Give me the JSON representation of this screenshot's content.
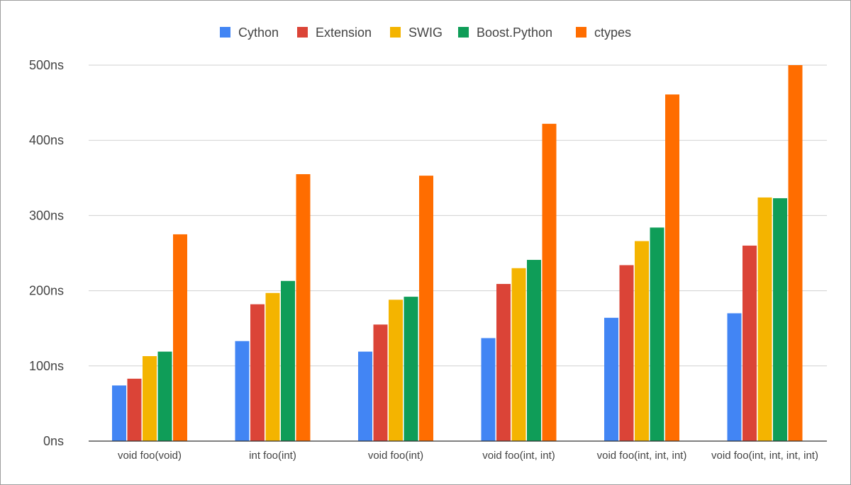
{
  "chart_data": {
    "type": "bar",
    "title": "",
    "xlabel": "",
    "ylabel": "",
    "categories": [
      "void foo(void)",
      "int foo(int)",
      "void foo(int)",
      "void foo(int, int)",
      "void foo(int, int, int)",
      "void foo(int, int, int, int)"
    ],
    "series": [
      {
        "name": "Cython",
        "color": "#4285f4",
        "values": [
          74,
          133,
          119,
          137,
          164,
          170
        ]
      },
      {
        "name": "Extension",
        "color": "#db4437",
        "values": [
          83,
          182,
          155,
          209,
          234,
          260
        ]
      },
      {
        "name": "SWIG",
        "color": "#f4b400",
        "values": [
          113,
          197,
          188,
          230,
          266,
          324
        ]
      },
      {
        "name": "Boost.Python",
        "color": "#0f9d58",
        "values": [
          119,
          213,
          192,
          241,
          284,
          323
        ]
      },
      {
        "name": "ctypes",
        "color": "#ff6d00",
        "values": [
          275,
          355,
          353,
          422,
          461,
          500
        ]
      }
    ],
    "ylim": [
      0,
      500
    ],
    "yticks": [
      0,
      100,
      200,
      300,
      400,
      500
    ],
    "ytick_labels": [
      "0ns",
      "100ns",
      "200ns",
      "300ns",
      "400ns",
      "500ns"
    ],
    "grid": true,
    "legend_position": "top-center"
  }
}
